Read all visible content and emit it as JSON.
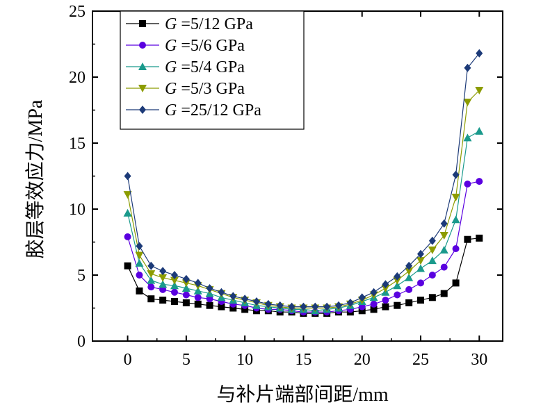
{
  "chart_data": {
    "type": "line",
    "title": "",
    "xlabel": "与补片端部间距/mm",
    "ylabel": "胶层等效应力/MPa",
    "xlim": [
      -3,
      32
    ],
    "ylim": [
      0,
      25
    ],
    "xticks": [
      0,
      5,
      10,
      15,
      20,
      25,
      30
    ],
    "yticks": [
      0,
      5,
      10,
      15,
      20,
      25
    ],
    "grid": false,
    "legend": {
      "placement": "top-left"
    },
    "x": [
      0,
      1,
      2,
      3,
      4,
      5,
      6,
      7,
      8,
      9,
      10,
      11,
      12,
      13,
      14,
      15,
      16,
      17,
      18,
      19,
      20,
      21,
      22,
      23,
      24,
      25,
      26,
      27,
      28,
      29,
      30
    ],
    "series": [
      {
        "name": "G =5/12 GPa",
        "label_italic": "G",
        "label_rest": " =5/12 GPa",
        "marker": "square",
        "color": "#000000",
        "values": [
          5.7,
          3.8,
          3.2,
          3.1,
          3.0,
          2.9,
          2.8,
          2.7,
          2.6,
          2.5,
          2.4,
          2.3,
          2.3,
          2.2,
          2.2,
          2.1,
          2.1,
          2.1,
          2.2,
          2.2,
          2.3,
          2.4,
          2.6,
          2.7,
          2.9,
          3.1,
          3.3,
          3.6,
          4.4,
          7.7,
          7.8
        ]
      },
      {
        "name": "G =5/6 GPa",
        "label_italic": "G",
        "label_rest": " =5/6 GPa",
        "marker": "circle",
        "color": "#5a00e0",
        "values": [
          7.9,
          5.0,
          4.1,
          3.9,
          3.7,
          3.5,
          3.3,
          3.2,
          3.0,
          2.8,
          2.7,
          2.5,
          2.4,
          2.4,
          2.3,
          2.2,
          2.2,
          2.2,
          2.3,
          2.4,
          2.6,
          2.8,
          3.1,
          3.5,
          3.9,
          4.4,
          5.0,
          5.6,
          7.0,
          11.9,
          12.1
        ]
      },
      {
        "name": "G =5/4 GPa",
        "label_italic": "G",
        "label_rest": " =5/4 GPa",
        "marker": "triangle-up",
        "color": "#1a9a8c",
        "values": [
          9.7,
          5.9,
          4.6,
          4.3,
          4.2,
          4.0,
          3.8,
          3.6,
          3.3,
          3.1,
          2.9,
          2.7,
          2.6,
          2.5,
          2.4,
          2.4,
          2.3,
          2.4,
          2.5,
          2.7,
          3.0,
          3.3,
          3.7,
          4.2,
          4.8,
          5.5,
          6.1,
          6.9,
          9.2,
          15.4,
          15.9
        ]
      },
      {
        "name": "G =5/3 GPa",
        "label_italic": "G",
        "label_rest": " =5/3 GPa",
        "marker": "triangle-down",
        "color": "#8c9c00",
        "values": [
          11.1,
          6.5,
          5.1,
          4.8,
          4.6,
          4.4,
          4.2,
          3.9,
          3.6,
          3.3,
          3.1,
          2.9,
          2.7,
          2.6,
          2.5,
          2.5,
          2.5,
          2.5,
          2.6,
          2.8,
          3.1,
          3.5,
          4.0,
          4.6,
          5.3,
          6.1,
          6.9,
          8.0,
          10.9,
          18.1,
          19.0
        ]
      },
      {
        "name": "G =25/12 GPa",
        "label_italic": "G",
        "label_rest": " =25/12 GPa",
        "marker": "diamond",
        "color": "#1c3a78",
        "values": [
          12.5,
          7.2,
          5.7,
          5.3,
          5.0,
          4.7,
          4.4,
          4.0,
          3.7,
          3.4,
          3.2,
          3.0,
          2.8,
          2.7,
          2.6,
          2.6,
          2.6,
          2.6,
          2.7,
          2.9,
          3.3,
          3.7,
          4.3,
          4.9,
          5.7,
          6.6,
          7.6,
          8.9,
          12.6,
          20.7,
          21.8
        ]
      }
    ]
  }
}
